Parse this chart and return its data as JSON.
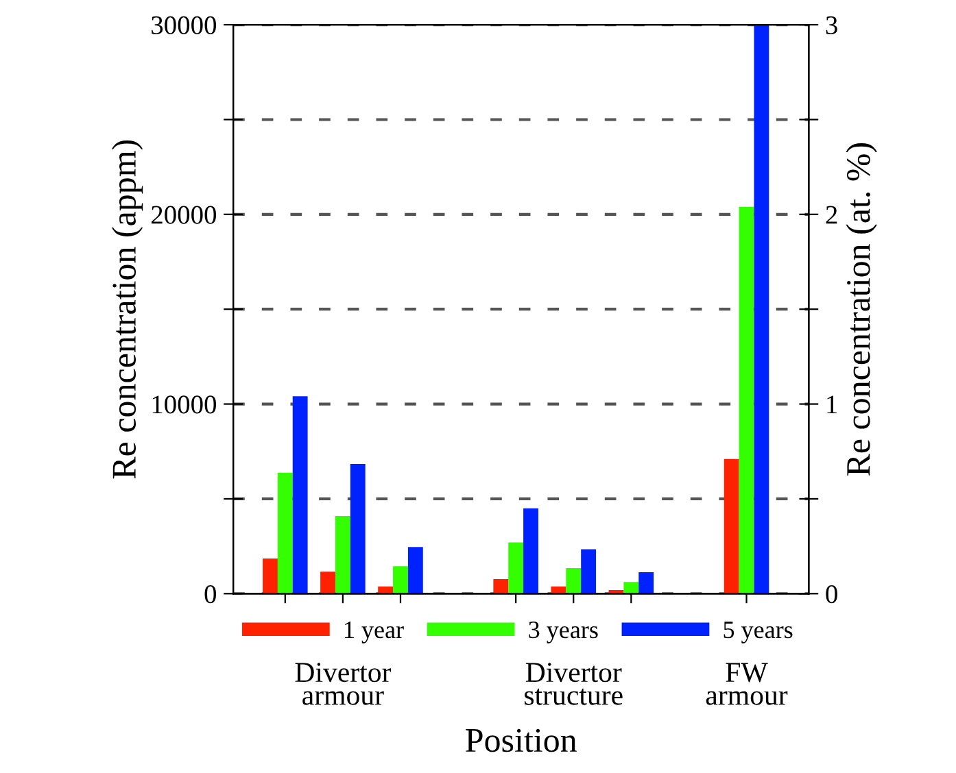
{
  "chart_data": {
    "type": "bar",
    "xlabel": "Position",
    "ylabel": "Re concentration (appm)",
    "y2label": "Re concentration (at. %)",
    "categories": [
      null,
      "Divertor\narmour",
      null,
      null,
      null,
      "Divertor\nstructure",
      null,
      null,
      "FW\narmour"
    ],
    "series": [
      {
        "name": "1 year",
        "color": "#ff2200",
        "values": [
          1850,
          1160,
          380,
          null,
          770,
          380,
          190,
          null,
          7100
        ]
      },
      {
        "name": "3 years",
        "color": "#33ff00",
        "values": [
          6380,
          4090,
          1450,
          null,
          2700,
          1350,
          620,
          null,
          20400
        ]
      },
      {
        "name": "5 years",
        "color": "#0022ff",
        "values": [
          10410,
          6840,
          2460,
          null,
          4500,
          2340,
          1130,
          null,
          30000
        ]
      }
    ],
    "ylim": [
      0,
      30000
    ],
    "yticks": [
      0,
      {
        "value": 5000,
        "label": null
      },
      10000,
      {
        "value": 15000,
        "label": null
      },
      20000,
      {
        "value": 25000,
        "label": null
      },
      30000
    ],
    "y2lim": [
      0,
      3
    ],
    "y2ticks": [
      0,
      {
        "value": 0.5,
        "label": null
      },
      1,
      {
        "value": 1.5,
        "label": null
      },
      2,
      {
        "value": 2.5,
        "label": null
      },
      3
    ],
    "grid": "y",
    "legend": "bottom"
  }
}
